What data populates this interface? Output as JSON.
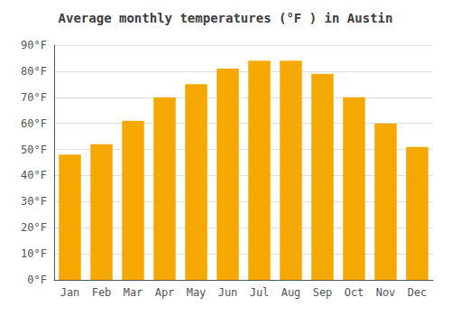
{
  "chart_data": {
    "type": "bar",
    "title": "Average monthly temperatures (°F ) in Austin",
    "categories": [
      "Jan",
      "Feb",
      "Mar",
      "Apr",
      "May",
      "Jun",
      "Jul",
      "Aug",
      "Sep",
      "Oct",
      "Nov",
      "Dec"
    ],
    "values": [
      48,
      52,
      61,
      70,
      75,
      81,
      84,
      84,
      79,
      70,
      60,
      51
    ],
    "color": "#F5A800",
    "ylim": [
      0,
      90
    ],
    "yticks": [
      {
        "value": 0,
        "label": "0°F"
      },
      {
        "value": 10,
        "label": "10°F"
      },
      {
        "value": 20,
        "label": "20°F"
      },
      {
        "value": 30,
        "label": "30°F"
      },
      {
        "value": 40,
        "label": "40°F"
      },
      {
        "value": 50,
        "label": "50°F"
      },
      {
        "value": 60,
        "label": "60°F"
      },
      {
        "value": 70,
        "label": "70°F"
      },
      {
        "value": 80,
        "label": "80°F"
      },
      {
        "value": 90,
        "label": "90°F"
      }
    ],
    "grid": true
  }
}
